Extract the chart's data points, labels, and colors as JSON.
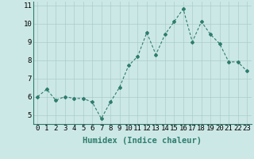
{
  "x": [
    0,
    1,
    2,
    3,
    4,
    5,
    6,
    7,
    8,
    9,
    10,
    11,
    12,
    13,
    14,
    15,
    16,
    17,
    18,
    19,
    20,
    21,
    22,
    23
  ],
  "y": [
    6.0,
    6.4,
    5.8,
    6.0,
    5.9,
    5.9,
    5.7,
    4.8,
    5.7,
    6.5,
    7.7,
    8.2,
    9.5,
    8.3,
    9.4,
    10.1,
    10.8,
    9.0,
    10.1,
    9.4,
    8.9,
    7.9,
    7.9,
    7.4
  ],
  "xlabel": "Humidex (Indice chaleur)",
  "xlim": [
    -0.5,
    23.5
  ],
  "ylim": [
    4.5,
    11.2
  ],
  "yticks": [
    5,
    6,
    7,
    8,
    9,
    10,
    11
  ],
  "xticks": [
    0,
    1,
    2,
    3,
    4,
    5,
    6,
    7,
    8,
    9,
    10,
    11,
    12,
    13,
    14,
    15,
    16,
    17,
    18,
    19,
    20,
    21,
    22,
    23
  ],
  "line_color": "#2e7d6e",
  "marker": "D",
  "marker_size": 2.0,
  "bg_color": "#cce8e6",
  "grid_color": "#aaccca",
  "line_width": 0.8,
  "tick_fontsize": 6.5,
  "xlabel_fontsize": 7.5
}
